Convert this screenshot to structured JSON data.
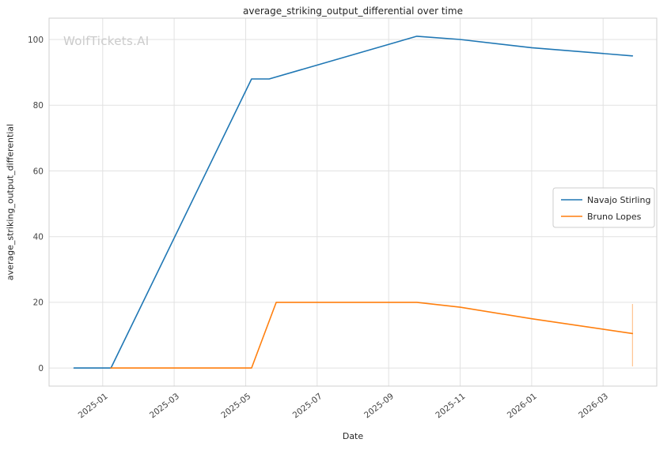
{
  "watermark": {
    "text": "WolfTickets.AI",
    "color": "#cbcbcb"
  },
  "chart_data": {
    "type": "line",
    "title": "average_striking_output_differential over time",
    "xlabel": "Date",
    "ylabel": "average_striking_output_differential",
    "grid": true,
    "legend_position": "center right",
    "x_tick_labels": [
      "2025-01",
      "2025-03",
      "2025-05",
      "2025-07",
      "2025-09",
      "2025-11",
      "2026-01",
      "2026-03"
    ],
    "x_tick_months": [
      0,
      2,
      4,
      6,
      8,
      10,
      12,
      14
    ],
    "y_ticks": [
      0,
      20,
      40,
      60,
      80,
      100
    ],
    "xlim_months": [
      -1.5,
      15.5
    ],
    "ylim": [
      -5.5,
      106.5
    ],
    "style": {
      "grid_color": "#e2e2e2",
      "border_color": "#cfcfcf",
      "tick_color": "#444444",
      "text_color": "#262626"
    },
    "series": [
      {
        "name": "Navajo Stirling",
        "color": "#1f77b4",
        "points": [
          [
            "2024-12-07",
            0
          ],
          [
            "2025-01-08",
            0
          ],
          [
            "2025-05-06",
            88
          ],
          [
            "2025-05-21",
            88
          ],
          [
            "2025-09-25",
            101
          ],
          [
            "2025-11-01",
            100
          ],
          [
            "2026-01-01",
            97.5
          ],
          [
            "2026-03-26",
            95
          ]
        ]
      },
      {
        "name": "Bruno Lopes",
        "color": "#ff7f0e",
        "points": [
          [
            "2025-01-08",
            0
          ],
          [
            "2025-05-06",
            0
          ],
          [
            "2025-05-27",
            20
          ],
          [
            "2025-09-25",
            20
          ],
          [
            "2025-11-01",
            18.5
          ],
          [
            "2026-01-01",
            15
          ],
          [
            "2026-03-26",
            10.5
          ]
        ],
        "error_bar": {
          "x": "2026-03-26",
          "y_low": 0.5,
          "y_high": 19.5
        }
      }
    ]
  }
}
